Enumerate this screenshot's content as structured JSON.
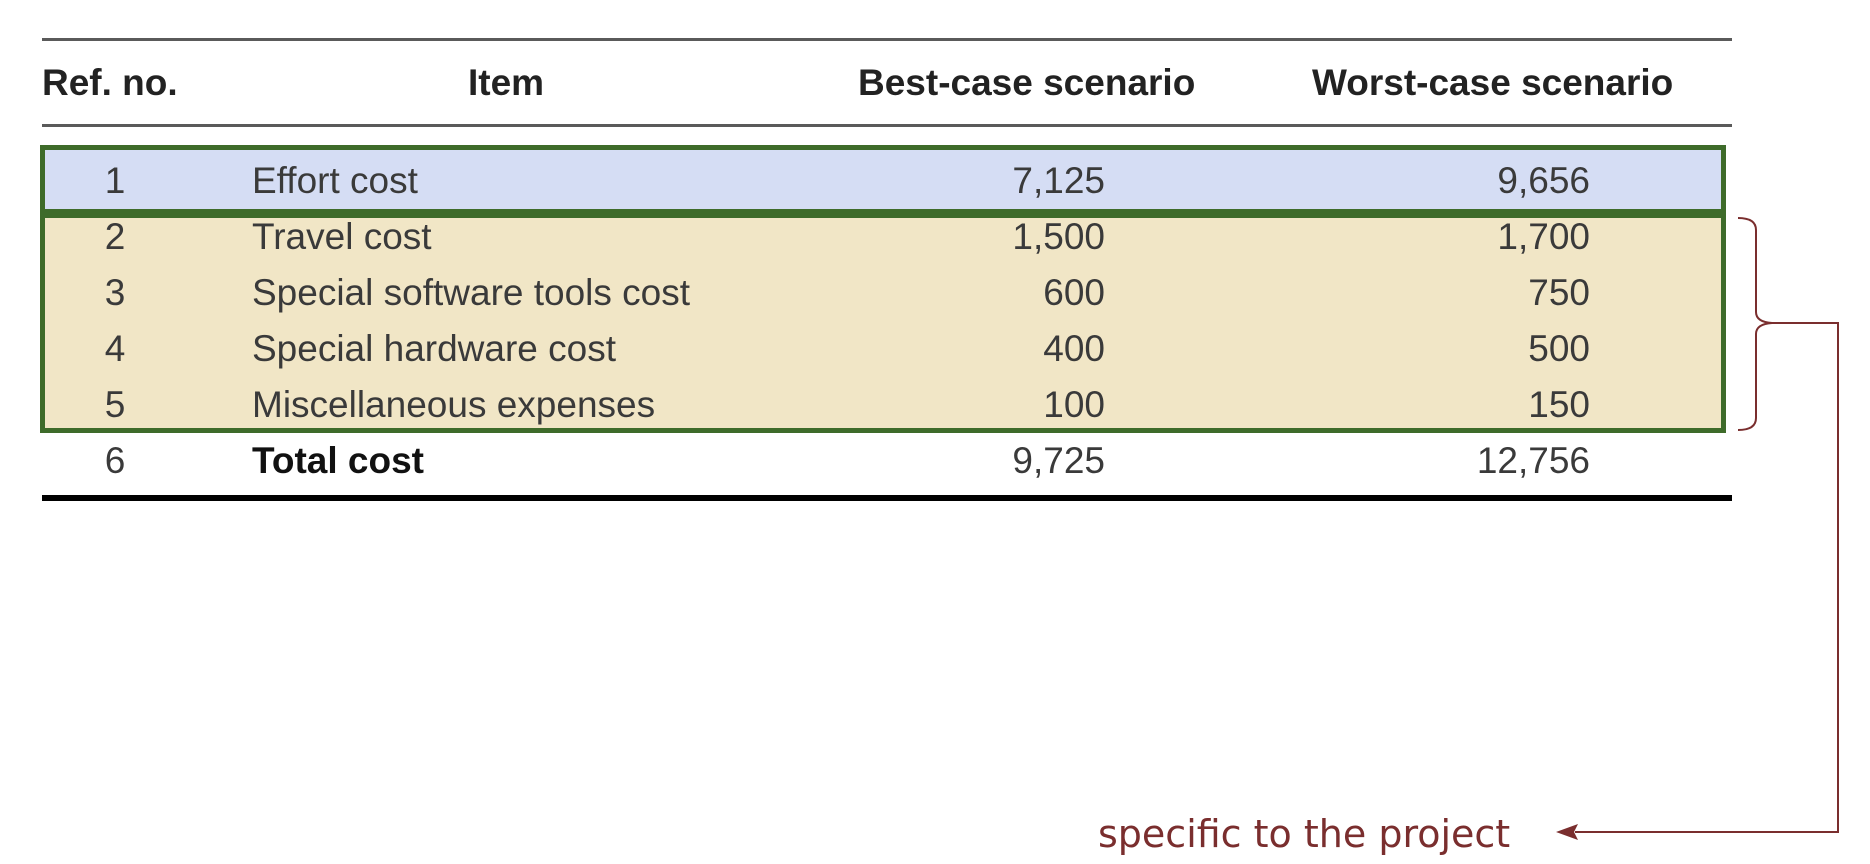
{
  "table": {
    "headers": {
      "ref": "Ref. no.",
      "item": "Item",
      "best": "Best-case scenario",
      "worst": "Worst-case scenario"
    },
    "rows": [
      {
        "ref": "1",
        "item": "Effort cost",
        "best": "7,125",
        "worst": "9,656",
        "highlight": "blue"
      },
      {
        "ref": "2",
        "item": "Travel cost",
        "best": "1,500",
        "worst": "1,700",
        "highlight": "tan"
      },
      {
        "ref": "3",
        "item": "Special software tools cost",
        "best": "600",
        "worst": "750",
        "highlight": "tan"
      },
      {
        "ref": "4",
        "item": "Special hardware cost",
        "best": "400",
        "worst": "500",
        "highlight": "tan"
      },
      {
        "ref": "5",
        "item": "Miscellaneous expenses",
        "best": "100",
        "worst": "150",
        "highlight": "tan"
      },
      {
        "ref": "6",
        "item": "Total cost",
        "best": "9,725",
        "worst": "12,756",
        "highlight": "none"
      }
    ]
  },
  "annotation": {
    "label": "specific to the project",
    "color": "#7a2e2e"
  },
  "colors": {
    "effort_highlight": "#d5ddf4",
    "project_specific_highlight": "#f1e6c6",
    "highlight_border": "#3e6b2a"
  }
}
